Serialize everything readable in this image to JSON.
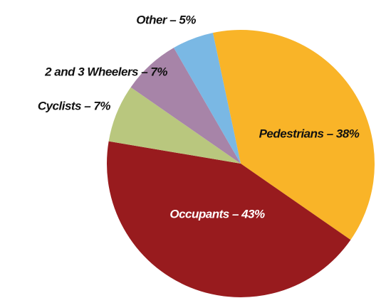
{
  "chart_data": {
    "type": "pie",
    "values": [
      38,
      43,
      7,
      7,
      5
    ],
    "value_labels": [
      "Pedestrians – 38%",
      "Occupants – 43%",
      "Cyclists – 7%",
      "2 and 3 Wheelers – 7%",
      "Other – 5%"
    ],
    "colors": [
      "#f9b428",
      "#981b1e",
      "#b9c77e",
      "#a784a8",
      "#7ab8e4"
    ]
  }
}
